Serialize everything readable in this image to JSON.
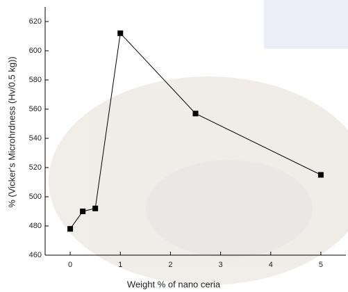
{
  "chart_data": {
    "type": "line",
    "x_label": "Weight % of nano ceria",
    "y_label": "% (Vicker's Microhrdness (Hv/0.5 kg))",
    "x": [
      0,
      0.25,
      0.5,
      1,
      2.5,
      5
    ],
    "series": [
      {
        "color": "#000000",
        "values": [
          478,
          490,
          492,
          612,
          557,
          515
        ]
      }
    ],
    "xlim": [
      -0.5,
      5.5
    ],
    "xticks": [
      0,
      1,
      2,
      3,
      4,
      5
    ],
    "ylim": [
      460,
      630
    ],
    "yticks": [
      460,
      480,
      500,
      520,
      540,
      560,
      580,
      600,
      620
    ]
  }
}
